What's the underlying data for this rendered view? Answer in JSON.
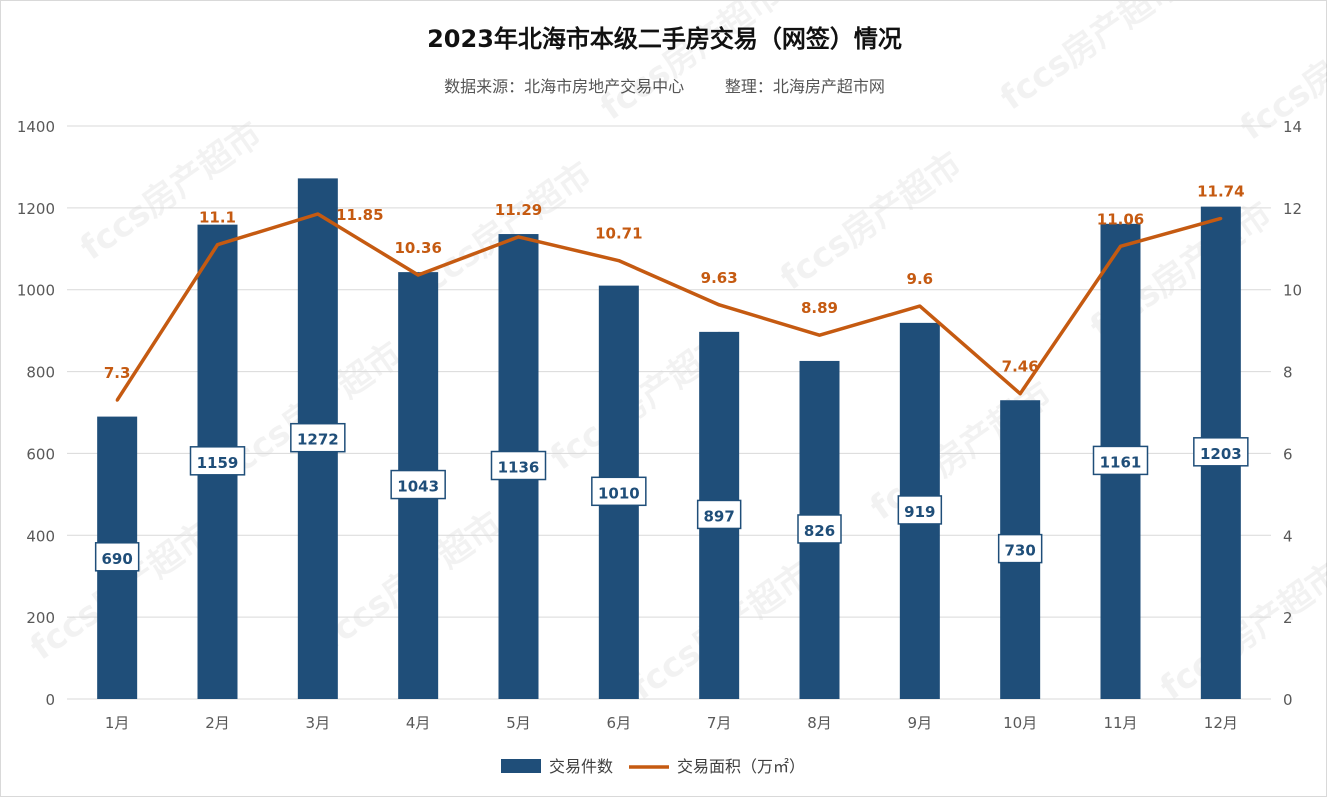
{
  "chart_data": {
    "type": "bar",
    "title": "2023年北海市本级二手房交易（网签）情况",
    "subtitle_source": "数据来源：北海市房地产交易中心",
    "subtitle_editor": "整理：北海房产超市网",
    "categories": [
      "1月",
      "2月",
      "3月",
      "4月",
      "5月",
      "6月",
      "7月",
      "8月",
      "9月",
      "10月",
      "11月",
      "12月"
    ],
    "series": [
      {
        "name": "交易件数",
        "type": "bar",
        "axis": "left",
        "color": "#1f4e79",
        "values": [
          690,
          1159,
          1272,
          1043,
          1136,
          1010,
          897,
          826,
          919,
          730,
          1161,
          1203
        ]
      },
      {
        "name": "交易面积（万㎡）",
        "type": "line",
        "axis": "right",
        "color": "#c55a11",
        "values": [
          7.3,
          11.1,
          11.85,
          10.36,
          11.29,
          10.71,
          9.63,
          8.89,
          9.6,
          7.46,
          11.06,
          11.74
        ],
        "labels": [
          "7.3",
          "11.1",
          "11.85",
          "10.36",
          "11.29",
          "10.71",
          "9.63",
          "8.89",
          "9.6",
          "7.46",
          "11.06",
          "11.74"
        ]
      }
    ],
    "ylim_left": [
      0,
      1400
    ],
    "yticks_left": [
      0,
      200,
      400,
      600,
      800,
      1000,
      1200,
      1400
    ],
    "ylim_right": [
      0,
      14
    ],
    "yticks_right": [
      0,
      2,
      4,
      6,
      8,
      10,
      12,
      14
    ],
    "grid": true,
    "legend": "bottom",
    "watermark": "fccs房产超市"
  }
}
